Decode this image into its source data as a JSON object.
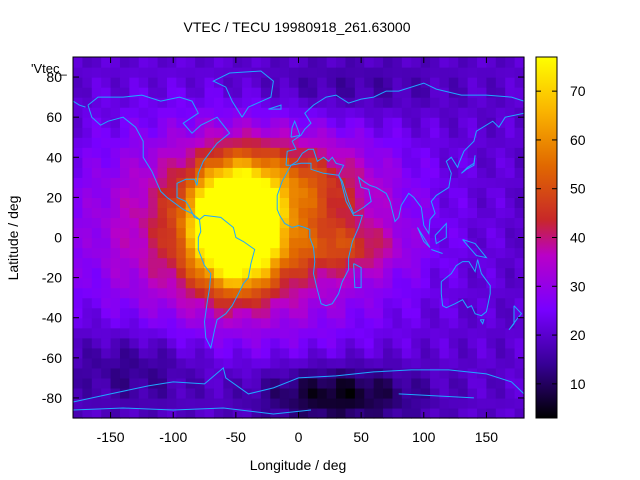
{
  "chart_data": {
    "type": "heatmap",
    "title": "VTEC / TECU 19980918_261.63000",
    "xlabel": "Longitude / deg",
    "ylabel": "Latitude / deg",
    "key_label": "'Vtec_",
    "xlim": [
      -180,
      180
    ],
    "ylim": [
      -90,
      90
    ],
    "x_ticks": [
      -150,
      -100,
      -50,
      0,
      50,
      100,
      150
    ],
    "y_ticks": [
      -80,
      -60,
      -40,
      -20,
      0,
      20,
      40,
      60,
      80
    ],
    "colorbar": {
      "range": [
        3,
        77
      ],
      "ticks": [
        10,
        20,
        30,
        40,
        50,
        60,
        70
      ],
      "palette": "black-blue-purple-red-orange-yellow"
    },
    "background_level": 20,
    "features": [
      {
        "kind": "equatorial-anomaly-peak",
        "lon": -50,
        "lat": 5,
        "value": 77,
        "spread_lon": 22,
        "spread_lat": 18
      },
      {
        "kind": "dayside-bulge",
        "lon": -45,
        "lat": 5,
        "value": 30,
        "spread_lon": 80,
        "spread_lat": 34
      },
      {
        "kind": "northern-extension",
        "lon": -10,
        "lat": 28,
        "value": 14,
        "spread_lon": 45,
        "spread_lat": 14
      },
      {
        "kind": "atlantic-tongue",
        "lon": 40,
        "lat": -5,
        "value": 12,
        "spread_lon": 30,
        "spread_lat": 8
      },
      {
        "kind": "southern-low",
        "lon": 30,
        "lat": -78,
        "value": -16,
        "spread_lon": 45,
        "spread_lat": 10
      },
      {
        "kind": "southern-low",
        "lon": -130,
        "lat": -65,
        "value": -8,
        "spread_lon": 40,
        "spread_lat": 14
      },
      {
        "kind": "northern-low",
        "lon": 30,
        "lat": 75,
        "value": -6,
        "spread_lon": 60,
        "spread_lat": 10
      }
    ],
    "grid": false,
    "overlay": "coastlines",
    "overlay_color": "#1ea8ff"
  }
}
